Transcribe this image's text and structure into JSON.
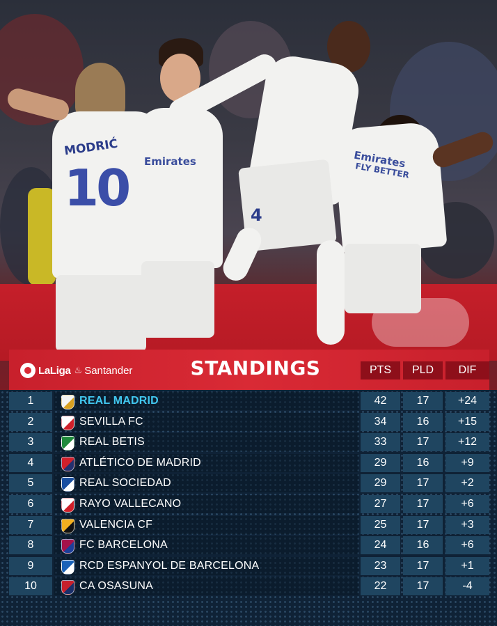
{
  "header": {
    "logo_text": "LaLiga",
    "logo_sponsor": "Santander",
    "title": "STANDINGS",
    "columns": [
      "PTS",
      "PLD",
      "DIF"
    ]
  },
  "photo": {
    "player_name": "MODRIĆ",
    "player_number": "10",
    "sponsor_line1": "Emirates",
    "sponsor_line2": "FLY BETTER",
    "other_number": "4"
  },
  "standings": [
    {
      "rank": "1",
      "team": "REAL MADRID",
      "pts": "42",
      "pld": "17",
      "dif": "+24",
      "crest_color": "#f4f4f4",
      "crest_accent": "#d8a020"
    },
    {
      "rank": "2",
      "team": "SEVILLA FC",
      "pts": "34",
      "pld": "16",
      "dif": "+15",
      "crest_color": "#ffffff",
      "crest_accent": "#d0202a"
    },
    {
      "rank": "3",
      "team": "REAL BETIS",
      "pts": "33",
      "pld": "17",
      "dif": "+12",
      "crest_color": "#1f8a3c",
      "crest_accent": "#ffffff"
    },
    {
      "rank": "4",
      "team": "ATLÉTICO DE MADRID",
      "pts": "29",
      "pld": "16",
      "dif": "+9",
      "crest_color": "#d0202a",
      "crest_accent": "#23306e"
    },
    {
      "rank": "5",
      "team": "REAL SOCIEDAD",
      "pts": "29",
      "pld": "17",
      "dif": "+2",
      "crest_color": "#1a4fa0",
      "crest_accent": "#ffffff"
    },
    {
      "rank": "6",
      "team": "RAYO VALLECANO",
      "pts": "27",
      "pld": "17",
      "dif": "+6",
      "crest_color": "#ffffff",
      "crest_accent": "#d0202a"
    },
    {
      "rank": "7",
      "team": "VALENCIA CF",
      "pts": "25",
      "pld": "17",
      "dif": "+3",
      "crest_color": "#f2b020",
      "crest_accent": "#111111"
    },
    {
      "rank": "8",
      "team": "FC BARCELONA",
      "pts": "24",
      "pld": "16",
      "dif": "+6",
      "crest_color": "#a5124a",
      "crest_accent": "#1d3f9a"
    },
    {
      "rank": "9",
      "team": "RCD ESPANYOL DE BARCELONA",
      "pts": "23",
      "pld": "17",
      "dif": "+1",
      "crest_color": "#1a62b8",
      "crest_accent": "#ffffff"
    },
    {
      "rank": "10",
      "team": "CA OSASUNA",
      "pts": "22",
      "pld": "17",
      "dif": "-4",
      "crest_color": "#c8202c",
      "crest_accent": "#1a2f6a"
    }
  ],
  "colors": {
    "header_red": "#d92a35",
    "column_dark_red": "#8e0f1a",
    "cell_blue": "#1f4560",
    "leader_text": "#41c7ef"
  }
}
